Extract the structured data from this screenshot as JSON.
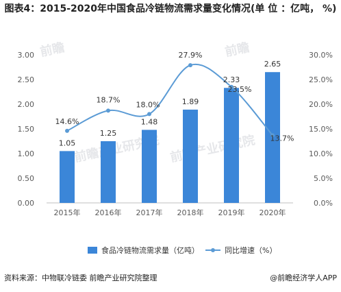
{
  "chart_data": {
    "type": "bar",
    "title": "图表4：2015-2020年中国食品冷链物流需求量变化情况(单 位 ：亿吨， %)",
    "categories": [
      "2015年",
      "2016年",
      "2017年",
      "2018年",
      "2019年",
      "2020年"
    ],
    "series": [
      {
        "name": "食品冷链物流需求量（亿吨）",
        "type": "bar",
        "axis": "left",
        "values": [
          1.05,
          1.25,
          1.48,
          1.89,
          2.33,
          2.65
        ],
        "labels": [
          "1.05",
          "1.25",
          "1.48",
          "1.89",
          "2.33",
          "2.65"
        ]
      },
      {
        "name": "同比增速（%）",
        "type": "line",
        "axis": "right",
        "values": [
          14.6,
          18.7,
          18.0,
          27.9,
          23.5,
          13.7
        ],
        "labels": [
          "14.6%",
          "18.7%",
          "18.0%",
          "27.9%",
          "23.5%",
          "13.7%"
        ]
      }
    ],
    "y_left": {
      "min": 0,
      "max": 3.0,
      "ticks": [
        "0.00",
        "0.50",
        "1.00",
        "1.50",
        "2.00",
        "2.50",
        "3.00"
      ]
    },
    "y_right": {
      "min": 0,
      "max": 30,
      "ticks": [
        "0.0%",
        "5.0%",
        "10.0%",
        "15.0%",
        "20.0%",
        "25.0%",
        "30.0%"
      ]
    },
    "grid": false,
    "legend": "bottom",
    "colors": {
      "bar": "#3b86d8",
      "line": "#5b9bd5"
    }
  },
  "footer": {
    "source": "资料来源：中物联冷链委 前瞻产业研究院整理",
    "credit": "@前瞻经济学人APP"
  },
  "watermarks": [
    "前瞻",
    "前瞻产业研究院"
  ]
}
